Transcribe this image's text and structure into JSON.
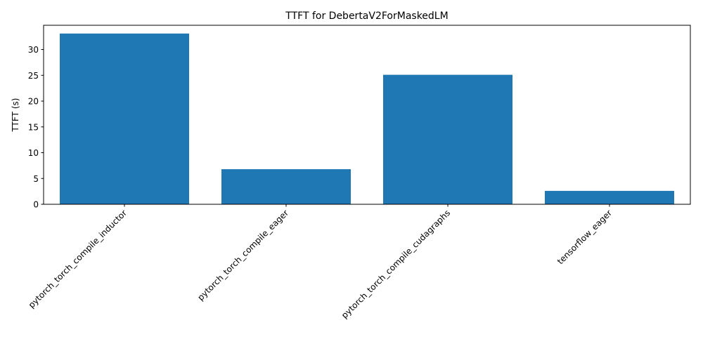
{
  "chart_data": {
    "type": "bar",
    "title": "TTFT for DebertaV2ForMaskedLM",
    "xlabel": "",
    "ylabel": "TTFT (s)",
    "categories": [
      "pytorch_torch_compile_inductor",
      "pytorch_torch_compile_eager",
      "pytorch_torch_compile_cudagraphs",
      "tensorflow_eager"
    ],
    "values": [
      33.1,
      6.8,
      25.1,
      2.6
    ],
    "ylim": [
      0,
      34.7
    ],
    "yticks": [
      0,
      5,
      10,
      15,
      20,
      25,
      30
    ],
    "grid": false,
    "colors": {
      "bar": "#1f77b4",
      "axis": "#000000"
    }
  }
}
